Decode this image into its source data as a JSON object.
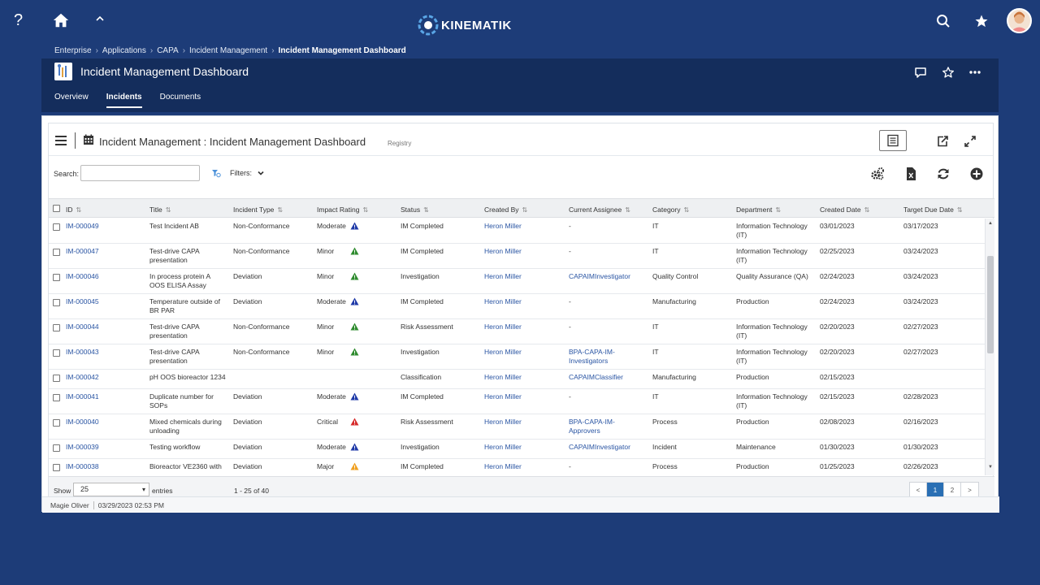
{
  "topbar": {
    "help": "?",
    "brand": "KINEMATIK"
  },
  "breadcrumb": [
    "Enterprise",
    "Applications",
    "CAPA",
    "Incident Management",
    "Incident Management Dashboard"
  ],
  "header": {
    "title": "Incident Management Dashboard"
  },
  "tabs": [
    {
      "label": "Overview",
      "active": false
    },
    {
      "label": "Incidents",
      "active": true
    },
    {
      "label": "Documents",
      "active": false
    }
  ],
  "card": {
    "title": "Incident Management : Incident Management Dashboard",
    "subtitle": "Registry",
    "search_label": "Search:",
    "search_value": "",
    "filters_label": "Filters:"
  },
  "columns": [
    "ID",
    "Title",
    "Incident Type",
    "Impact Rating",
    "Status",
    "Created By",
    "Current Assignee",
    "Category",
    "Department",
    "Created Date",
    "Target Due Date"
  ],
  "impact_colors": {
    "Moderate": "#1f3aa8",
    "Minor": "#2e8b2e",
    "Critical": "#d62b2b",
    "Major": "#f0a020"
  },
  "rows": [
    {
      "id": "IM-000049",
      "title": "Test Incident AB",
      "type": "Non-Conformance",
      "impact": "Moderate",
      "status": "IM Completed",
      "created_by": "Heron Miller",
      "assignee": "-",
      "category": "IT",
      "department": "Information Technology (IT)",
      "created": "03/01/2023",
      "due": "03/17/2023"
    },
    {
      "id": "IM-000047",
      "title": "Test-drive CAPA presentation",
      "type": "Non-Conformance",
      "impact": "Minor",
      "status": "IM Completed",
      "created_by": "Heron Miller",
      "assignee": "-",
      "category": "IT",
      "department": "Information Technology (IT)",
      "created": "02/25/2023",
      "due": "03/24/2023"
    },
    {
      "id": "IM-000046",
      "title": "In process protein A OOS ELISA Assay",
      "type": "Deviation",
      "impact": "Minor",
      "status": "Investigation",
      "created_by": "Heron Miller",
      "assignee": "CAPAIMInvestigator",
      "category": "Quality Control",
      "department": "Quality Assurance (QA)",
      "created": "02/24/2023",
      "due": "03/24/2023"
    },
    {
      "id": "IM-000045",
      "title": "Temperature outside of BR PAR",
      "type": "Deviation",
      "impact": "Moderate",
      "status": "IM Completed",
      "created_by": "Heron Miller",
      "assignee": "-",
      "category": "Manufacturing",
      "department": "Production",
      "created": "02/24/2023",
      "due": "03/24/2023"
    },
    {
      "id": "IM-000044",
      "title": "Test-drive CAPA presentation",
      "type": "Non-Conformance",
      "impact": "Minor",
      "status": "Risk Assessment",
      "created_by": "Heron Miller",
      "assignee": "-",
      "category": "IT",
      "department": "Information Technology (IT)",
      "created": "02/20/2023",
      "due": "02/27/2023"
    },
    {
      "id": "IM-000043",
      "title": "Test-drive CAPA presentation",
      "type": "Non-Conformance",
      "impact": "Minor",
      "status": "Investigation",
      "created_by": "Heron Miller",
      "assignee": "BPA-CAPA-IM-Investigators",
      "category": "IT",
      "department": "Information Technology (IT)",
      "created": "02/20/2023",
      "due": "02/27/2023"
    },
    {
      "id": "IM-000042",
      "title": "pH OOS bioreactor 1234",
      "type": "",
      "impact": "",
      "status": "Classification",
      "created_by": "Heron Miller",
      "assignee": "CAPAIMClassifier",
      "category": "Manufacturing",
      "department": "Production",
      "created": "02/15/2023",
      "due": ""
    },
    {
      "id": "IM-000041",
      "title": "Duplicate number for SOPs",
      "type": "Deviation",
      "impact": "Moderate",
      "status": "IM Completed",
      "created_by": "Heron Miller",
      "assignee": "-",
      "category": "IT",
      "department": "Information Technology (IT)",
      "created": "02/15/2023",
      "due": "02/28/2023"
    },
    {
      "id": "IM-000040",
      "title": "Mixed chemicals during unloading",
      "type": "Deviation",
      "impact": "Critical",
      "status": "Risk Assessment",
      "created_by": "Heron Miller",
      "assignee": "BPA-CAPA-IM-Approvers",
      "category": "Process",
      "department": "Production",
      "created": "02/08/2023",
      "due": "02/16/2023"
    },
    {
      "id": "IM-000039",
      "title": "Testing workflow",
      "type": "Deviation",
      "impact": "Moderate",
      "status": "Investigation",
      "created_by": "Heron Miller",
      "assignee": "CAPAIMInvestigator",
      "category": "Incident",
      "department": "Maintenance",
      "created": "01/30/2023",
      "due": "01/30/2023"
    },
    {
      "id": "IM-000038",
      "title": "Bioreactor VE2360 with",
      "type": "Deviation",
      "impact": "Major",
      "status": "IM Completed",
      "created_by": "Heron Miller",
      "assignee": "-",
      "category": "Process",
      "department": "Production",
      "created": "01/25/2023",
      "due": "02/26/2023"
    }
  ],
  "footer": {
    "show_label": "Show",
    "page_size": "25",
    "entries_label": "entries",
    "range": "1 - 25 of 40",
    "pages": [
      "<",
      "1",
      "2",
      ">"
    ],
    "current_page": "1"
  },
  "status": {
    "user": "Magie Oliver",
    "timestamp": "03/29/2023 02:53 PM"
  }
}
